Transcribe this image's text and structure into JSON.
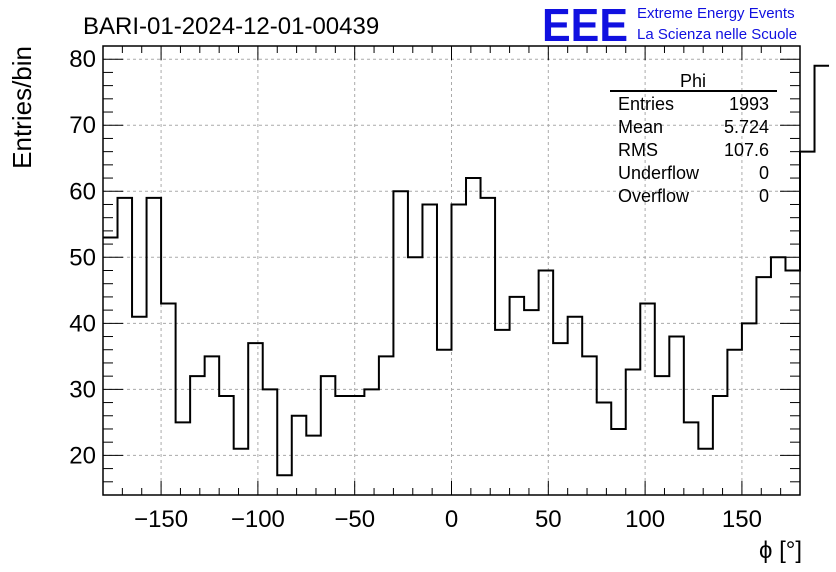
{
  "header": {
    "title": "BARI-01-2024-12-01-00439",
    "logo_text": "EEE",
    "logo_line1": "Extreme Energy Events",
    "logo_line2": "La Scienza nelle Scuole"
  },
  "stats": {
    "name": "Phi",
    "rows": [
      {
        "label": "Entries",
        "value": "1993"
      },
      {
        "label": "Mean",
        "value": "5.724"
      },
      {
        "label": "RMS",
        "value": "107.6"
      },
      {
        "label": "Underflow",
        "value": "0"
      },
      {
        "label": "Overflow",
        "value": "0"
      }
    ]
  },
  "colors": {
    "logo": "#1010e0",
    "grid": "#aaaaaa",
    "line": "#000000"
  },
  "chart_data": {
    "type": "histogram",
    "title": "BARI-01-2024-12-01-00439",
    "xlabel": "ϕ [°]",
    "ylabel": "Entries/bin",
    "xlim": [
      -180,
      180
    ],
    "ylim": [
      14,
      82
    ],
    "bin_width": 7.5,
    "x_ticks": [
      -150,
      -100,
      -50,
      0,
      50,
      100,
      150
    ],
    "x_tick_labels": [
      "−150",
      "−100",
      "−50",
      "0",
      "50",
      "100",
      "150"
    ],
    "y_ticks": [
      20,
      30,
      40,
      50,
      60,
      70,
      80
    ],
    "y_tick_labels": [
      "20",
      "30",
      "40",
      "50",
      "60",
      "70",
      "80"
    ],
    "grid": true,
    "values": [
      53,
      59,
      41,
      59,
      43,
      25,
      32,
      35,
      29,
      21,
      37,
      30,
      17,
      26,
      23,
      32,
      29,
      29,
      30,
      35,
      60,
      50,
      58,
      36,
      58,
      62,
      59,
      39,
      44,
      42,
      48,
      37,
      41,
      35,
      28,
      24,
      33,
      43,
      32,
      38,
      25,
      21,
      29,
      36,
      40,
      47,
      50,
      48,
      66,
      79
    ]
  }
}
